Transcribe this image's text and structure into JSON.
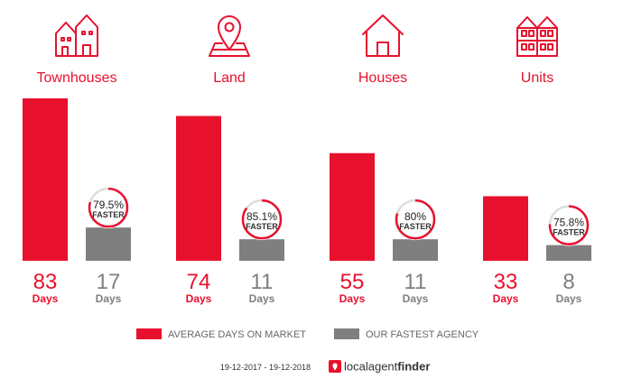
{
  "chart_data": {
    "type": "bar",
    "categories": [
      "Townhouses",
      "Land",
      "Houses",
      "Units"
    ],
    "series": [
      {
        "name": "AVERAGE DAYS ON MARKET",
        "values": [
          83,
          74,
          55,
          33
        ],
        "color": "#e8112d"
      },
      {
        "name": "OUR FASTEST AGENCY",
        "values": [
          17,
          11,
          11,
          8
        ],
        "color": "#7f7f7f"
      }
    ],
    "unit_label": "Days",
    "badges": [
      {
        "percent_text": "79.5%",
        "percent": 79.5,
        "label": "FASTER"
      },
      {
        "percent_text": "85.1%",
        "percent": 85.1,
        "label": "FASTER"
      },
      {
        "percent_text": "80%",
        "percent": 80,
        "label": "FASTER"
      },
      {
        "percent_text": "75.8%",
        "percent": 75.8,
        "label": "FASTER"
      }
    ],
    "icons": [
      "townhouses-icon",
      "land-pin-icon",
      "house-icon",
      "units-icon"
    ],
    "ylim": [
      0,
      83
    ],
    "legend_position": "bottom"
  },
  "footer": {
    "date_range": "19-12-2017 - 19-12-2018",
    "brand_part1": "localagent",
    "brand_part2": "finder"
  },
  "colors": {
    "accent": "#e8112d",
    "gray": "#7f7f7f",
    "ring_track": "#dddddd"
  }
}
